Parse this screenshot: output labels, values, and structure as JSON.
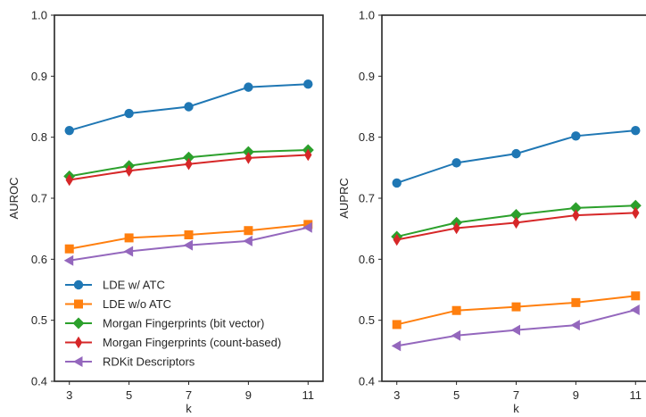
{
  "chart_data": [
    {
      "type": "line",
      "title": "",
      "xlabel": "k",
      "ylabel": "AUROC",
      "x": [
        3,
        5,
        7,
        9,
        11
      ],
      "x_ticks": [
        "3",
        "5",
        "7",
        "9",
        "11"
      ],
      "ylim": [
        0.4,
        1.0
      ],
      "y_ticks": [
        "0.4",
        "0.5",
        "0.6",
        "0.7",
        "0.8",
        "0.9",
        "1.0"
      ],
      "grid": false,
      "legend_position": "lower-left",
      "series": [
        {
          "name": "LDE w/ ATC",
          "color": "#1f77b4",
          "marker": "circle",
          "values": [
            0.811,
            0.839,
            0.85,
            0.882,
            0.887
          ]
        },
        {
          "name": "LDE w/o ATC",
          "color": "#ff7f0e",
          "marker": "square",
          "values": [
            0.617,
            0.635,
            0.64,
            0.647,
            0.657
          ]
        },
        {
          "name": "Morgan Fingerprints (bit vector)",
          "color": "#2ca02c",
          "marker": "diamond",
          "values": [
            0.736,
            0.753,
            0.767,
            0.776,
            0.779
          ]
        },
        {
          "name": "Morgan Fingerprints (count-based)",
          "color": "#d62728",
          "marker": "thin_diamond",
          "values": [
            0.73,
            0.745,
            0.756,
            0.766,
            0.771
          ]
        },
        {
          "name": "RDKit Descriptors",
          "color": "#9467bd",
          "marker": "triangle-left",
          "values": [
            0.598,
            0.613,
            0.623,
            0.63,
            0.652
          ]
        }
      ]
    },
    {
      "type": "line",
      "title": "",
      "xlabel": "k",
      "ylabel": "AUPRC",
      "x": [
        3,
        5,
        7,
        9,
        11
      ],
      "x_ticks": [
        "3",
        "5",
        "7",
        "9",
        "11"
      ],
      "ylim": [
        0.4,
        1.0
      ],
      "y_ticks": [
        "0.4",
        "0.5",
        "0.6",
        "0.7",
        "0.8",
        "0.9",
        "1.0"
      ],
      "grid": false,
      "series": [
        {
          "color": "#1f77b4",
          "marker": "circle",
          "values": [
            0.725,
            0.758,
            0.773,
            0.802,
            0.811
          ]
        },
        {
          "color": "#ff7f0e",
          "marker": "square",
          "values": [
            0.493,
            0.516,
            0.522,
            0.529,
            0.54
          ]
        },
        {
          "color": "#2ca02c",
          "marker": "diamond",
          "values": [
            0.637,
            0.66,
            0.673,
            0.684,
            0.688
          ]
        },
        {
          "color": "#d62728",
          "marker": "thin_diamond",
          "values": [
            0.632,
            0.651,
            0.66,
            0.672,
            0.676
          ]
        },
        {
          "color": "#9467bd",
          "marker": "triangle-left",
          "values": [
            0.458,
            0.475,
            0.484,
            0.492,
            0.517
          ]
        }
      ]
    }
  ]
}
